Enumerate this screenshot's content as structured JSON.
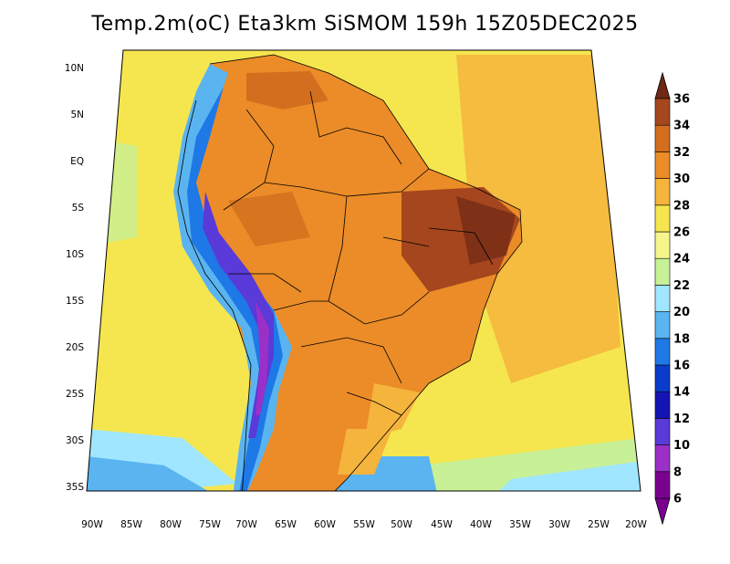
{
  "title": "Temp.2m(oC) Eta3km SiSMOM 159h 15Z05DEC2025",
  "map": {
    "lat_labels": [
      "10N",
      "5N",
      "EQ",
      "5S",
      "10S",
      "15S",
      "20S",
      "25S",
      "30S",
      "35S"
    ],
    "lon_labels": [
      "90W",
      "85W",
      "80W",
      "75W",
      "70W",
      "65W",
      "60W",
      "55W",
      "50W",
      "45W",
      "40W",
      "35W",
      "30W",
      "25W",
      "20W"
    ]
  },
  "colorbar": {
    "labels": [
      "6",
      "8",
      "10",
      "12",
      "14",
      "16",
      "18",
      "20",
      "22",
      "24",
      "26",
      "28",
      "30",
      "32",
      "34",
      "36"
    ],
    "colors": [
      "#7a0090",
      "#9b30c8",
      "#5a3ad8",
      "#1414b4",
      "#0a3ccc",
      "#1e78e6",
      "#5ab4f0",
      "#a0e6ff",
      "#c8f096",
      "#f5f58c",
      "#f5e650",
      "#f5b43c",
      "#eb8c28",
      "#d26e1e",
      "#a5461e",
      "#6e2814"
    ]
  }
}
